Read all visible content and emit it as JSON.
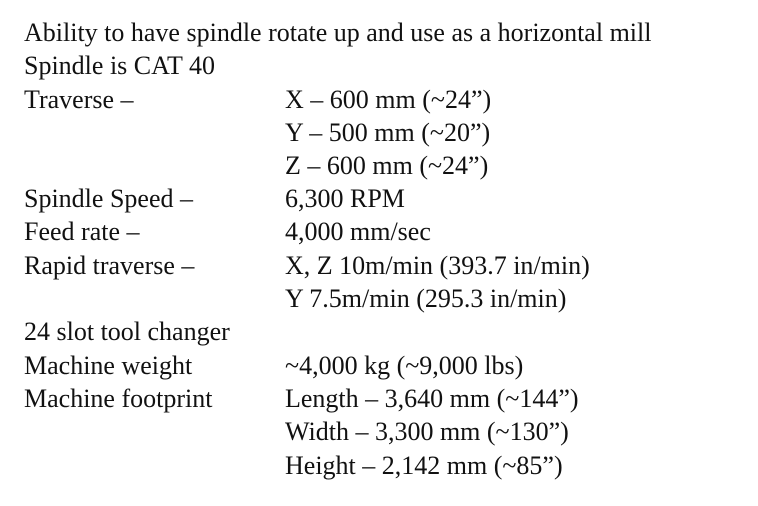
{
  "lines": [
    {
      "label": "Ability to have spindle rotate up and use as a horizontal mill",
      "value": ""
    },
    {
      "label": "Spindle is CAT 40",
      "value": ""
    },
    {
      "label": "Traverse –",
      "value": "X – 600 mm (~24”)"
    },
    {
      "label": "",
      "value": "Y – 500 mm (~20”)"
    },
    {
      "label": "",
      "value": "Z – 600 mm (~24”)"
    },
    {
      "label": "Spindle Speed –",
      "value": "6,300 RPM"
    },
    {
      "label": "Feed rate –",
      "value": "4,000 mm/sec"
    },
    {
      "label": "Rapid traverse –",
      "value": "X, Z 10m/min (393.7 in/min)"
    },
    {
      "label": "",
      "value": "Y 7.5m/min (295.3 in/min)"
    },
    {
      "label": "24 slot tool changer",
      "value": ""
    },
    {
      "label": "Machine weight",
      "value": "~4,000 kg  (~9,000 lbs)"
    },
    {
      "label": "Machine footprint",
      "value": "Length – 3,640 mm (~144”)"
    },
    {
      "label": "",
      "value": "Width – 3,300 mm (~130”)"
    },
    {
      "label": "",
      "value": "Height – 2,142 mm (~85”)"
    }
  ]
}
